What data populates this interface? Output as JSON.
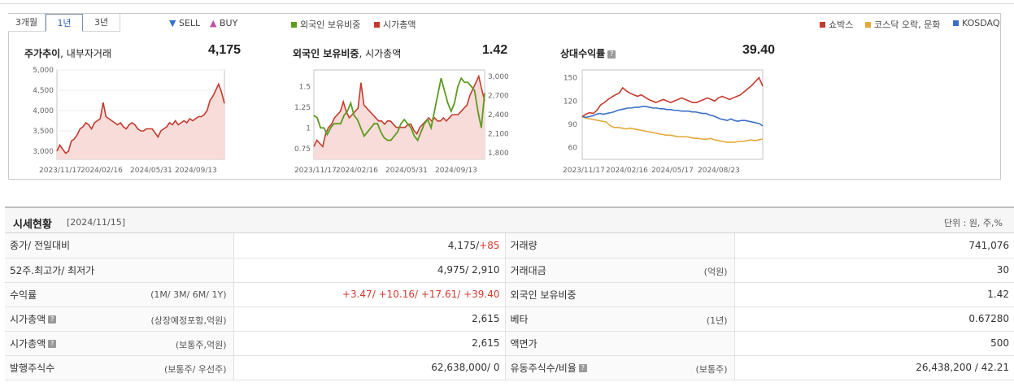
{
  "tabs": [
    "3개월",
    "1년",
    "3년"
  ],
  "active_tab": 1,
  "legend": {
    "sell": "▼ SELL",
    "buy": "▲ BUY",
    "foreign": "외국인 보유비중",
    "market_cap": "시가총액",
    "company": "쇼박스",
    "kosdaq_sector": "코스닥 오락, 문화",
    "kosdaq": "KOSDAQ"
  },
  "colors": {
    "price_line": "#c33b2d",
    "price_fill": "#f7dcd9",
    "foreign_line": "#5d9b1f",
    "sector_line": "#e3a93a",
    "kosdaq_line": "#3c6fc8",
    "sell": "#3b6fd0",
    "buy": "#c04fa0"
  },
  "charts": {
    "price": {
      "title_bold": "주가추이",
      "title_rest": ", 내부자거래",
      "value": "4,175",
      "y_ticks": [
        "5,000",
        "4,500",
        "4,000",
        "3,500",
        "3,000"
      ],
      "x_ticks": [
        "2023/11/17",
        "2024/02/16",
        "2024/05/31",
        "2024/09/13"
      ]
    },
    "foreign": {
      "title_bold": "외국인 보유비중",
      "title_rest": ", 시가총액",
      "value": "1.42",
      "y_ticks_left": [
        "1.5",
        "1.25",
        "1",
        "0.75"
      ],
      "y_ticks_right": [
        "3,000",
        "2,700",
        "2,400",
        "2,100",
        "1,800"
      ],
      "x_ticks": [
        "2023/11/17",
        "2024/02/16",
        "2024/05/31",
        "2024/09/13"
      ]
    },
    "relative": {
      "title_bold": "상대수익률",
      "value": "39.40",
      "y_ticks": [
        "150",
        "120",
        "90",
        "60"
      ],
      "x_ticks": [
        "2023/11/17",
        "2024/02/16",
        "2024/05/17",
        "2024/08/23"
      ]
    }
  },
  "chart_data": [
    {
      "type": "area",
      "title": "주가추이, 내부자거래",
      "ylim": [
        2800,
        5000
      ],
      "series": [
        {
          "values": [
            3000,
            3150,
            3050,
            2950,
            3000,
            3250,
            3300,
            3400,
            3550,
            3600,
            3700,
            3650,
            3550,
            3700,
            3750,
            3800,
            4200,
            3850,
            3800,
            3750,
            3700,
            3650,
            3700,
            3600,
            3550,
            3650,
            3700,
            3650,
            3550,
            3500,
            3500,
            3550,
            3550,
            3550,
            3450,
            3350,
            3500,
            3550,
            3600,
            3700,
            3650,
            3750,
            3650,
            3700,
            3750,
            3700,
            3800,
            3750,
            3800,
            3850,
            3850,
            3900,
            4000,
            4250,
            4350,
            4500,
            4650,
            4450,
            4175
          ]
        }
      ]
    },
    {
      "type": "line",
      "title": "외국인 보유비중, 시가총액",
      "ylim": [
        0.62,
        1.7
      ],
      "y2lim": [
        1700,
        3100
      ],
      "series": [
        {
          "name": "외국인 보유비중",
          "values": [
            1.15,
            1.12,
            1.0,
            1.0,
            0.92,
            1.0,
            1.05,
            1.05,
            1.05,
            1.15,
            1.2,
            1.3,
            1.15,
            1.1,
            1.0,
            0.9,
            0.95,
            1.0,
            1.05,
            1.05,
            0.95,
            0.88,
            0.85,
            0.85,
            0.9,
            0.95,
            1.05,
            1.1,
            1.05,
            1.0,
            0.9,
            0.85,
            0.95,
            1.05,
            1.1,
            1.0,
            1.2,
            1.4,
            1.6,
            1.45,
            1.3,
            1.2,
            1.3,
            1.5,
            1.6,
            1.55,
            1.55,
            1.5,
            1.45,
            1.2,
            1.0,
            1.42
          ]
        },
        {
          "name": "시가총액",
          "values": [
            1900,
            2000,
            1950,
            1900,
            2100,
            2200,
            2250,
            2350,
            2400,
            2450,
            2600,
            2450,
            2350,
            2400,
            2450,
            2500,
            2900,
            2550,
            2500,
            2450,
            2400,
            2350,
            2300,
            2300,
            2250,
            2300,
            2300,
            2250,
            2200,
            2200,
            2200,
            2200,
            2250,
            2250,
            2150,
            2100,
            2200,
            2250,
            2300,
            2350,
            2300,
            2350,
            2300,
            2300,
            2350,
            2300,
            2350,
            2400,
            2400,
            2400,
            2450,
            2500,
            2550,
            2700,
            2800,
            2900,
            3000,
            2800,
            2615
          ]
        }
      ]
    },
    {
      "type": "line",
      "title": "상대수익률",
      "ylim": [
        45,
        160
      ],
      "series": [
        {
          "name": "쇼박스",
          "values": [
            100,
            103,
            105,
            104,
            108,
            115,
            118,
            122,
            125,
            128,
            130,
            137,
            133,
            130,
            128,
            126,
            128,
            125,
            122,
            120,
            118,
            120,
            122,
            120,
            118,
            120,
            122,
            124,
            122,
            120,
            118,
            118,
            120,
            122,
            124,
            122,
            120,
            124,
            126,
            124,
            122,
            124,
            126,
            128,
            132,
            136,
            140,
            145,
            150,
            139
          ]
        },
        {
          "name": "코스닥 오락, 문화",
          "values": [
            100,
            98,
            97,
            96,
            95,
            94,
            93,
            88,
            86,
            86,
            85,
            84,
            85,
            84,
            83,
            82,
            81,
            80,
            79,
            78,
            77,
            76,
            76,
            75,
            74,
            74,
            74,
            73,
            72,
            72,
            71,
            71,
            72,
            70,
            69,
            68,
            67,
            67,
            67,
            68,
            68,
            69,
            70,
            69,
            70,
            71
          ]
        },
        {
          "name": "KOSDAQ",
          "values": [
            100,
            99,
            100,
            101,
            103,
            104,
            103,
            104,
            105,
            106,
            108,
            109,
            110,
            111,
            111,
            112,
            112,
            113,
            113,
            112,
            111,
            111,
            110,
            110,
            109,
            109,
            108,
            108,
            107,
            107,
            107,
            106,
            106,
            105,
            104,
            104,
            102,
            101,
            99,
            97,
            96,
            95,
            97,
            95,
            94,
            95,
            95,
            94,
            93,
            92,
            91,
            88
          ]
        }
      ]
    }
  ],
  "table": {
    "title": "시세현황",
    "date": "[2024/11/15]",
    "unit": "단위 : 원, 주,%",
    "rows": [
      {
        "l1": "종가/ 전일대비",
        "s1": "",
        "v1a": "4,175/",
        "v1b": "+85",
        "l2": "거래량",
        "s2": "",
        "v2": "741,076"
      },
      {
        "l1": "52주.최고가/ 최저가",
        "s1": "",
        "v1a": "4,975/ 2,910",
        "v1b": "",
        "l2": "거래대금",
        "s2": "(억원)",
        "v2": "30"
      },
      {
        "l1": "수익률",
        "s1": "(1M/ 3M/ 6M/ 1Y)",
        "v1a": "",
        "v1b": "+3.47/ +10.16/ +17.61/ +39.40",
        "l2": "외국인 보유비중",
        "s2": "",
        "v2": "1.42"
      },
      {
        "l1": "시가총액",
        "s1": "(상장예정포함,억원)",
        "v1a": "2,615",
        "v1b": "",
        "l2": "베타",
        "s2": "(1년)",
        "v2": "0.67280"
      },
      {
        "l1": "시가총액",
        "s1": "(보통주,억원)",
        "v1a": "2,615",
        "v1b": "",
        "l2": "액면가",
        "s2": "",
        "v2": "500"
      },
      {
        "l1": "발행주식수",
        "s1": "(보통주/ 우선주)",
        "v1a": "62,638,000/ 0",
        "v1b": "",
        "l2": "유동주식수/비율",
        "s2": "(보통주)",
        "v2": "26,438,200 / 42.21"
      }
    ]
  }
}
